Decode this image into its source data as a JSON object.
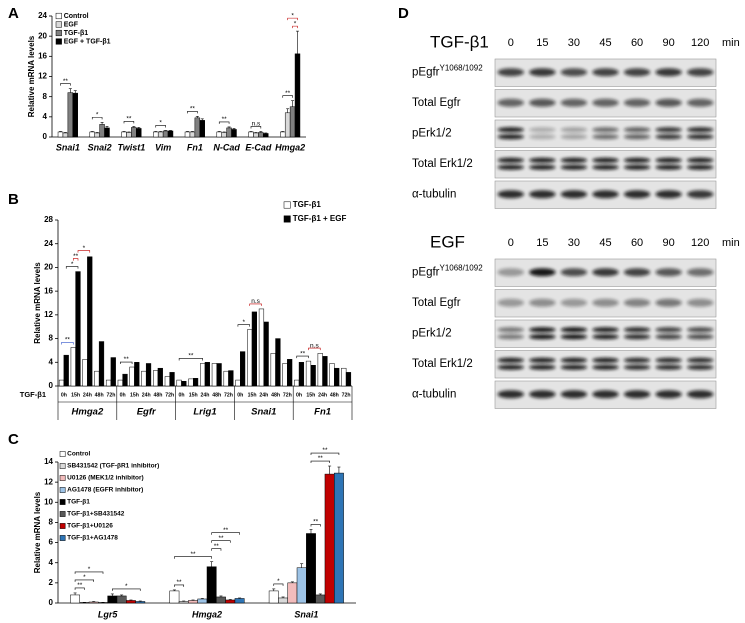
{
  "panel_labels": [
    "A",
    "B",
    "C",
    "D"
  ],
  "chart_data": [
    {
      "type": "bar",
      "ylabel": "Relative mRNA levels",
      "categories": [
        "Snai1",
        "Snai2",
        "Twist1",
        "Vim",
        "Fn1",
        "N-Cad",
        "E-Cad",
        "Hmga2"
      ],
      "series": [
        {
          "name": "Control",
          "color": "#ffffff",
          "values": [
            1,
            1,
            1,
            1,
            1,
            1,
            1,
            1
          ],
          "errors": [
            0.1,
            0.1,
            0.1,
            0.1,
            0.1,
            0.1,
            0.1,
            0.1
          ]
        },
        {
          "name": "EGF",
          "color": "#d9d9d9",
          "values": [
            0.8,
            0.8,
            0.9,
            1.0,
            1.0,
            0.9,
            0.8,
            4.8
          ],
          "errors": [
            0.1,
            0.1,
            0.1,
            0.1,
            0.1,
            0.1,
            0.1,
            0.8
          ]
        },
        {
          "name": "TGF-β1",
          "color": "#808080",
          "values": [
            8.8,
            2.5,
            1.9,
            1.2,
            3.8,
            1.8,
            0.9,
            6
          ],
          "errors": [
            0.8,
            0.4,
            0.2,
            0.1,
            0.3,
            0.2,
            0.2,
            1.2
          ]
        },
        {
          "name": "EGF + TGF-β1",
          "color": "#000000",
          "values": [
            8.7,
            1.8,
            1.7,
            1.2,
            3.3,
            1.5,
            0.7,
            16.5
          ],
          "errors": [
            0.5,
            0.3,
            0.2,
            0.1,
            0.3,
            0.2,
            0.1,
            4.5
          ]
        }
      ],
      "ylim": [
        0,
        24
      ],
      "yticks": [
        0,
        4,
        8,
        12,
        16,
        20,
        24
      ],
      "legend": "top-left",
      "significance": [
        {
          "label": "**",
          "bars": [
            [
              0,
              0
            ],
            [
              0,
              2
            ]
          ]
        },
        {
          "label": "*",
          "bars": [
            [
              1,
              0
            ],
            [
              1,
              2
            ]
          ]
        },
        {
          "label": "**",
          "bars": [
            [
              2,
              0
            ],
            [
              2,
              2
            ]
          ]
        },
        {
          "label": "*",
          "bars": [
            [
              3,
              0
            ],
            [
              3,
              2
            ]
          ]
        },
        {
          "label": "**",
          "bars": [
            [
              4,
              0
            ],
            [
              4,
              2
            ]
          ]
        },
        {
          "label": "**",
          "bars": [
            [
              5,
              0
            ],
            [
              5,
              2
            ]
          ]
        },
        {
          "label": "n.s",
          "bars": [
            [
              6,
              0
            ],
            [
              6,
              2
            ]
          ]
        },
        {
          "label": "**",
          "bars": [
            [
              7,
              0
            ],
            [
              7,
              2
            ]
          ]
        },
        {
          "label": "*",
          "bars": [
            [
              7,
              2
            ],
            [
              7,
              3
            ]
          ],
          "color": "#c00000"
        },
        {
          "label": "*",
          "bars": [
            [
              7,
              1
            ],
            [
              7,
              3
            ]
          ],
          "color": "#c00000"
        }
      ]
    },
    {
      "type": "bar",
      "ylabel": "Relative mRNA levels",
      "row_label": "TGF-β1",
      "groups": [
        "Hmga2",
        "Egfr",
        "Lrig1",
        "Snai1",
        "Fn1"
      ],
      "categories": [
        "0h",
        "15h",
        "24h",
        "48h",
        "72h",
        "0h",
        "15h",
        "24h",
        "48h",
        "72h",
        "0h",
        "15h",
        "24h",
        "48h",
        "72h",
        "0h",
        "15h",
        "24h",
        "48h",
        "72h",
        "0h",
        "15h",
        "24h",
        "48h",
        "72h"
      ],
      "series": [
        {
          "name": "TGF-β1",
          "color": "#ffffff",
          "values": [
            1,
            6.5,
            4.5,
            2.5,
            1,
            1,
            3.2,
            2.5,
            2.6,
            1.6,
            1,
            1.2,
            3.8,
            3.8,
            2.5,
            1,
            9.5,
            13,
            5.5,
            3.8,
            1,
            4.2,
            5.5,
            3.8,
            3
          ]
        },
        {
          "name": "TGF-β1 + EGF",
          "color": "#000000",
          "values": [
            5.2,
            19.3,
            21.8,
            7.5,
            4.8,
            2,
            4,
            3.8,
            3,
            2.3,
            0.8,
            1.3,
            4,
            3.8,
            2.6,
            5.8,
            12.5,
            10.8,
            8,
            4.5,
            4,
            3.5,
            5,
            3,
            2.3
          ]
        }
      ],
      "ylim": [
        0,
        28
      ],
      "yticks": [
        0,
        4,
        8,
        12,
        16,
        20,
        24,
        28
      ],
      "legend": "top-right",
      "significance": [
        {
          "label": "**",
          "bars": [
            [
              0,
              0
            ],
            [
              1,
              0
            ]
          ],
          "color": "#3355cc"
        },
        {
          "label": "*",
          "bars": [
            [
              0,
              1
            ],
            [
              1,
              1
            ]
          ]
        },
        {
          "label": "**",
          "bars": [
            [
              1,
              0
            ],
            [
              1,
              1
            ]
          ],
          "color": "#c00000"
        },
        {
          "label": "*",
          "bars": [
            [
              1,
              1
            ],
            [
              2,
              1
            ]
          ],
          "color": "#c00000"
        },
        {
          "label": "**",
          "bars": [
            [
              5,
              0
            ],
            [
              6,
              0
            ]
          ]
        },
        {
          "label": "**",
          "bars": [
            [
              10,
              0
            ],
            [
              12,
              0
            ]
          ]
        },
        {
          "label": "*",
          "bars": [
            [
              15,
              0
            ],
            [
              16,
              0
            ]
          ]
        },
        {
          "label": "n.s",
          "bars": [
            [
              16,
              0
            ],
            [
              17,
              0
            ]
          ],
          "color": "#c00000"
        },
        {
          "label": "**",
          "bars": [
            [
              20,
              0
            ],
            [
              21,
              0
            ]
          ]
        },
        {
          "label": "n.s",
          "bars": [
            [
              21,
              0
            ],
            [
              22,
              0
            ]
          ],
          "color": "#c00000"
        }
      ]
    },
    {
      "type": "bar",
      "ylabel": "Relative mRNA levels",
      "categories": [
        "Lgr5",
        "Hmga2",
        "Snai1"
      ],
      "series": [
        {
          "name": "Control",
          "color": "#ffffff",
          "values": [
            0.8,
            1.2,
            1.2
          ],
          "errors": [
            0.2,
            0.1,
            0.2
          ]
        },
        {
          "name": "SB431542 (TGF-βR1 inhibitor)",
          "color": "#d9d9d9",
          "values": [
            0.05,
            0.15,
            0.5
          ],
          "errors": [
            0.02,
            0.05,
            0.1
          ]
        },
        {
          "name": "U0126 (MEK1/2 inhibitor)",
          "color": "#f2bcbc",
          "values": [
            0.1,
            0.25,
            2.0
          ],
          "errors": [
            0.05,
            0.05,
            0.1
          ]
        },
        {
          "name": "AG1478 (EGFR inhibitor)",
          "color": "#9dc3e6",
          "values": [
            0.05,
            0.4,
            3.5
          ],
          "errors": [
            0.02,
            0.05,
            0.4
          ]
        },
        {
          "name": "TGF-β1",
          "color": "#000000",
          "values": [
            0.7,
            3.6,
            6.9
          ],
          "errors": [
            0.2,
            0.5,
            0.4
          ]
        },
        {
          "name": "TGF-β1+SB431542",
          "color": "#595959",
          "values": [
            0.7,
            0.6,
            0.8
          ],
          "errors": [
            0.1,
            0.1,
            0.1
          ]
        },
        {
          "name": "TGF-β1+U0126",
          "color": "#c00000",
          "values": [
            0.25,
            0.3,
            12.8
          ],
          "errors": [
            0.05,
            0.05,
            0.8
          ]
        },
        {
          "name": "TGF-β1+AG1478",
          "color": "#2e75b6",
          "values": [
            0.15,
            0.45,
            12.9
          ],
          "errors": [
            0.05,
            0.05,
            0.6
          ]
        }
      ],
      "ylim": [
        0,
        14
      ],
      "yticks": [
        0,
        2,
        4,
        6,
        8,
        10,
        12,
        14
      ],
      "legend": "top-left",
      "significance": [
        {
          "label": "**",
          "bars": [
            [
              0,
              0
            ],
            [
              0,
              1
            ]
          ]
        },
        {
          "label": "*",
          "bars": [
            [
              0,
              0
            ],
            [
              0,
              2
            ]
          ]
        },
        {
          "label": "*",
          "bars": [
            [
              0,
              0
            ],
            [
              0,
              3
            ]
          ]
        },
        {
          "label": "*",
          "bars": [
            [
              0,
              4
            ],
            [
              0,
              7
            ]
          ]
        },
        {
          "label": "**",
          "bars": [
            [
              1,
              0
            ],
            [
              1,
              1
            ]
          ]
        },
        {
          "label": "**",
          "bars": [
            [
              1,
              0
            ],
            [
              1,
              4
            ]
          ]
        },
        {
          "label": "**",
          "bars": [
            [
              1,
              4
            ],
            [
              1,
              5
            ]
          ]
        },
        {
          "label": "**",
          "bars": [
            [
              1,
              4
            ],
            [
              1,
              6
            ]
          ]
        },
        {
          "label": "**",
          "bars": [
            [
              1,
              4
            ],
            [
              1,
              7
            ]
          ]
        },
        {
          "label": "*",
          "bars": [
            [
              2,
              0
            ],
            [
              2,
              1
            ]
          ]
        },
        {
          "label": "**",
          "bars": [
            [
              2,
              4
            ],
            [
              2,
              5
            ]
          ]
        },
        {
          "label": "**",
          "bars": [
            [
              2,
              4
            ],
            [
              2,
              6
            ]
          ]
        },
        {
          "label": "**",
          "bars": [
            [
              2,
              4
            ],
            [
              2,
              7
            ]
          ]
        }
      ]
    }
  ],
  "blots": [
    {
      "title": "TGF-β1",
      "times": [
        "0",
        "15",
        "30",
        "45",
        "60",
        "90",
        "120"
      ],
      "unit": "min",
      "rows": [
        {
          "label": "pEgfr",
          "sup": "Y1068/1092"
        },
        {
          "label": "Total Egfr"
        },
        {
          "label": "pErk1/2"
        },
        {
          "label": "Total Erk1/2"
        },
        {
          "label": "α-tubulin"
        }
      ]
    },
    {
      "title": "EGF",
      "times": [
        "0",
        "15",
        "30",
        "45",
        "60",
        "90",
        "120"
      ],
      "unit": "min",
      "rows": [
        {
          "label": "pEgfr",
          "sup": "Y1068/1092"
        },
        {
          "label": "Total Egfr"
        },
        {
          "label": "pErk1/2"
        },
        {
          "label": "Total Erk1/2"
        },
        {
          "label": "α-tubulin"
        }
      ]
    }
  ]
}
